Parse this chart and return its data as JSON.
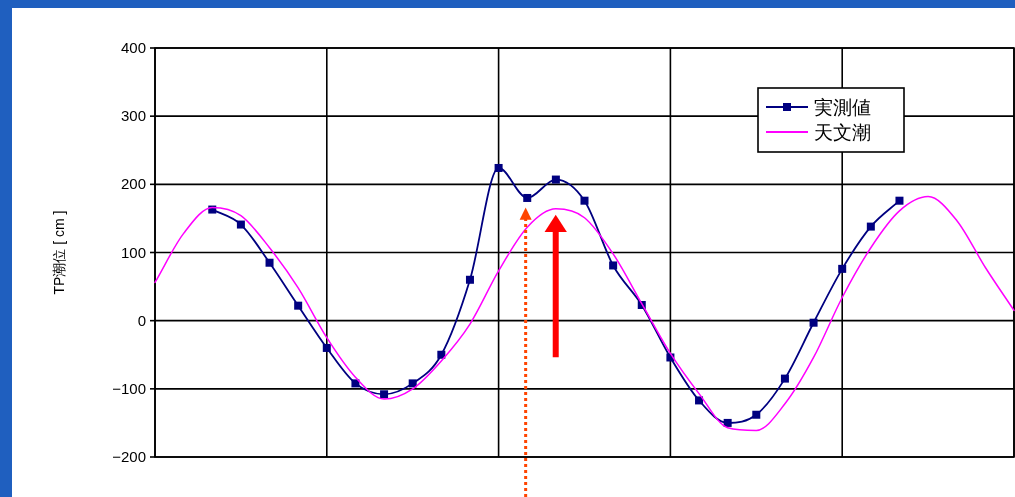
{
  "chart_data": {
    "type": "line",
    "ylabel": "TP潮位 [ cm ]",
    "categories": [
      null,
      null,
      null,
      null,
      null,
      null,
      null,
      null,
      null,
      null,
      null,
      null,
      null,
      null,
      null,
      null,
      null,
      null,
      null,
      null,
      null,
      null,
      null,
      null,
      null,
      null,
      null,
      null,
      null,
      null,
      null
    ],
    "series": [
      {
        "name": "実測値",
        "color": "#000080",
        "marker": "square",
        "values": [
          null,
          null,
          163,
          141,
          85,
          22,
          -40,
          -92,
          -108,
          -92,
          -50,
          60,
          224,
          180,
          207,
          176,
          81,
          23,
          -54,
          -117,
          -150,
          -138,
          -85,
          -3,
          76,
          138,
          176,
          null,
          null,
          null,
          null
        ]
      },
      {
        "name": "天文潮",
        "color": "#ff00ff",
        "marker": "none",
        "values": [
          56,
          128,
          166,
          154,
          107,
          48,
          -25,
          -83,
          -115,
          -100,
          -59,
          -5,
          73,
          137,
          164,
          151,
          98,
          25,
          -48,
          -107,
          -157,
          -161,
          -122,
          -54,
          34,
          107,
          161,
          182,
          147,
          78,
          15
        ]
      }
    ],
    "ylim": [
      -200,
      400
    ],
    "yticks": [
      -200,
      -100,
      0,
      100,
      200,
      300,
      400
    ],
    "grid": true,
    "legend": "top right",
    "line_style": "solid"
  }
}
